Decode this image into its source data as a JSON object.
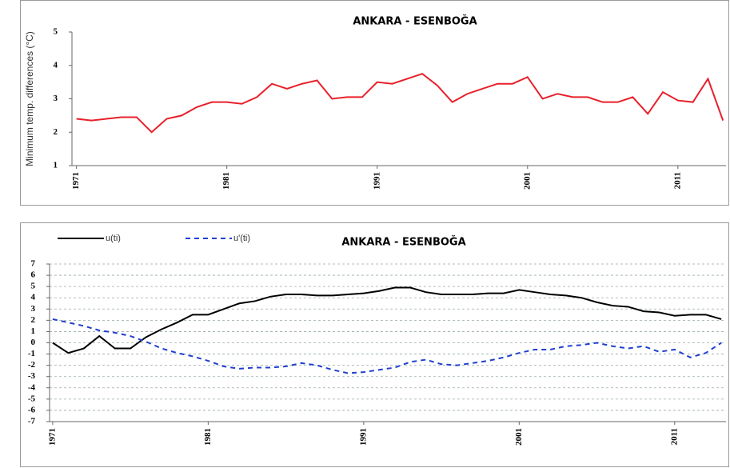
{
  "chart_data": [
    {
      "type": "line",
      "title": "ANKARA - ESENBOĞA",
      "y_label": "Minimum temp. differences (°C)",
      "x": [
        1971,
        1972,
        1973,
        1974,
        1975,
        1976,
        1977,
        1978,
        1979,
        1980,
        1981,
        1982,
        1983,
        1984,
        1985,
        1986,
        1987,
        1988,
        1989,
        1990,
        1991,
        1992,
        1993,
        1994,
        1995,
        1996,
        1997,
        1998,
        1999,
        2000,
        2001,
        2002,
        2003,
        2004,
        2005,
        2006,
        2007,
        2008,
        2009,
        2010,
        2011,
        2012,
        2013,
        2014
      ],
      "values": [
        2.4,
        2.35,
        2.4,
        2.45,
        2.45,
        2.0,
        2.4,
        2.5,
        2.75,
        2.9,
        2.9,
        2.85,
        3.05,
        3.45,
        3.3,
        3.45,
        3.55,
        3.0,
        3.05,
        3.05,
        3.5,
        3.45,
        3.6,
        3.75,
        3.4,
        2.9,
        3.15,
        3.3,
        3.45,
        3.45,
        3.65,
        3.0,
        3.15,
        3.05,
        3.05,
        2.9,
        2.9,
        3.05,
        2.55,
        3.2,
        2.95,
        2.9,
        3.6,
        2.35
      ],
      "color": "#e8202a",
      "xlim": [
        1970.7,
        2014.2
      ],
      "xticks": [
        1971,
        1981,
        1991,
        2001,
        2011
      ],
      "ylim": [
        1,
        5
      ],
      "yticks": [
        1,
        2,
        3,
        4,
        5
      ],
      "grid": false
    },
    {
      "type": "line",
      "title": "ANKARA - ESENBOĞA",
      "x": [
        1971,
        1972,
        1973,
        1974,
        1975,
        1976,
        1977,
        1978,
        1979,
        1980,
        1981,
        1982,
        1983,
        1984,
        1985,
        1986,
        1987,
        1988,
        1989,
        1990,
        1991,
        1992,
        1993,
        1994,
        1995,
        1996,
        1997,
        1998,
        1999,
        2000,
        2001,
        2002,
        2003,
        2004,
        2005,
        2006,
        2007,
        2008,
        2009,
        2010,
        2011,
        2012,
        2013,
        2014
      ],
      "series": [
        {
          "name": "u(ti)",
          "color": "#000000",
          "line_style": "solid",
          "values": [
            0,
            -0.9,
            -0.5,
            0.6,
            -0.5,
            -0.5,
            0.5,
            1.2,
            1.8,
            2.5,
            2.5,
            3.0,
            3.5,
            3.7,
            4.1,
            4.3,
            4.3,
            4.2,
            4.2,
            4.3,
            4.4,
            4.6,
            4.9,
            4.9,
            4.5,
            4.3,
            4.3,
            4.3,
            4.4,
            4.4,
            4.7,
            4.5,
            4.3,
            4.2,
            4.0,
            3.6,
            3.3,
            3.2,
            2.8,
            2.7,
            2.4,
            2.5,
            2.5,
            2.1
          ]
        },
        {
          "name": "u'(ti)",
          "color": "#1f3fd0",
          "line_style": "dashed",
          "values": [
            2.1,
            1.8,
            1.5,
            1.1,
            0.9,
            0.6,
            0.1,
            -0.5,
            -0.9,
            -1.2,
            -1.6,
            -2.1,
            -2.3,
            -2.2,
            -2.2,
            -2.1,
            -1.8,
            -2.0,
            -2.4,
            -2.7,
            -2.6,
            -2.4,
            -2.2,
            -1.7,
            -1.5,
            -1.9,
            -2.0,
            -1.8,
            -1.6,
            -1.3,
            -0.9,
            -0.6,
            -0.6,
            -0.3,
            -0.2,
            0.0,
            -0.3,
            -0.5,
            -0.3,
            -0.8,
            -0.6,
            -1.3,
            -0.9,
            0.0
          ]
        }
      ],
      "xlim": [
        1970.8,
        2014.3
      ],
      "xticks": [
        1971,
        1981,
        1991,
        2001,
        2011
      ],
      "ylim": [
        -7,
        7
      ],
      "yticks": [
        -7,
        -6,
        -5,
        -4,
        -3,
        -2,
        -1,
        0,
        1,
        2,
        3,
        4,
        5,
        6,
        7
      ],
      "grid": true
    }
  ]
}
